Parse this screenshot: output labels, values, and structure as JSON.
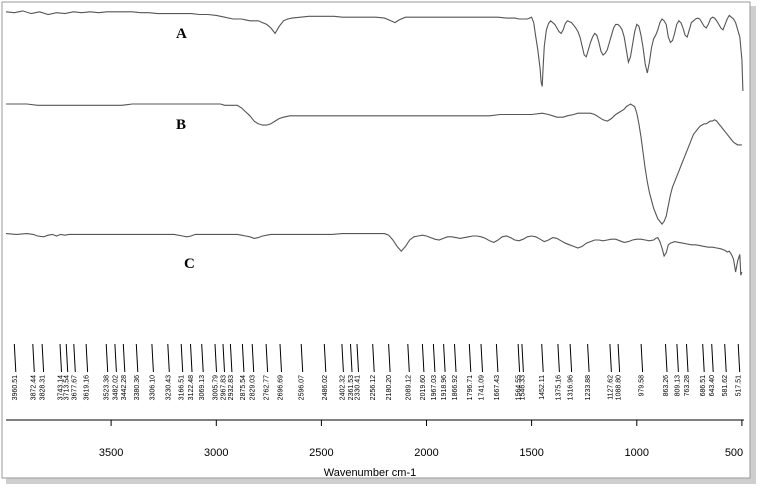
{
  "chart_data": {
    "type": "line",
    "xlabel": "Wavenumber cm-1",
    "xlim": [
      4000,
      490
    ],
    "x_ticks": [
      3500,
      3000,
      2500,
      2000,
      1500,
      1000,
      500
    ],
    "series": [
      {
        "name": "A",
        "x": [
          4000,
          3960,
          3920,
          3880,
          3840,
          3800,
          3760,
          3720,
          3680,
          3640,
          3600,
          3560,
          3520,
          3480,
          3440,
          3400,
          3360,
          3320,
          3280,
          3240,
          3200,
          3160,
          3120,
          3080,
          3040,
          3000,
          2960,
          2920,
          2880,
          2860,
          2840,
          2800,
          2780,
          2760,
          2740,
          2720,
          2700,
          2680,
          2660,
          2640,
          2600,
          2560,
          2520,
          2480,
          2440,
          2400,
          2360,
          2320,
          2280,
          2240,
          2200,
          2170,
          2150,
          2130,
          2100,
          2060,
          2020,
          1980,
          1940,
          1900,
          1860,
          1820,
          1780,
          1740,
          1700,
          1660,
          1620,
          1580,
          1560,
          1540,
          1520,
          1500,
          1490,
          1480,
          1470,
          1460,
          1455,
          1450,
          1445,
          1440,
          1430,
          1420,
          1410,
          1400,
          1390,
          1380,
          1370,
          1360,
          1350,
          1340,
          1330,
          1320,
          1310,
          1300,
          1290,
          1280,
          1270,
          1260,
          1250,
          1240,
          1230,
          1220,
          1210,
          1200,
          1190,
          1180,
          1170,
          1160,
          1150,
          1140,
          1130,
          1120,
          1110,
          1100,
          1090,
          1080,
          1070,
          1060,
          1050,
          1040,
          1030,
          1020,
          1010,
          1000,
          990,
          980,
          970,
          960,
          950,
          940,
          930,
          920,
          910,
          900,
          890,
          880,
          870,
          860,
          850,
          840,
          830,
          820,
          810,
          800,
          790,
          780,
          770,
          760,
          750,
          740,
          730,
          720,
          710,
          700,
          690,
          680,
          670,
          660,
          650,
          640,
          630,
          620,
          610,
          600,
          590,
          580,
          570,
          560,
          550,
          540,
          530,
          520,
          510,
          500,
          495
        ],
        "y": [
          98,
          97,
          99,
          96,
          98,
          95,
          97,
          96,
          98,
          97,
          98,
          97,
          98,
          98,
          98,
          98,
          97,
          97,
          96,
          96,
          96,
          96,
          96,
          95,
          95,
          94,
          92,
          90,
          90,
          89,
          88,
          88,
          86,
          84,
          80,
          74,
          82,
          88,
          90,
          91,
          92,
          93,
          93,
          93,
          93,
          92,
          92,
          92,
          92,
          92,
          91,
          88,
          86,
          89,
          92,
          92,
          92,
          92,
          92,
          92,
          92,
          92,
          92,
          92,
          92,
          92,
          91,
          91,
          90,
          90,
          90,
          92,
          86,
          70,
          55,
          35,
          20,
          15,
          38,
          60,
          78,
          85,
          88,
          86,
          84,
          80,
          76,
          74,
          78,
          85,
          88,
          87,
          86,
          83,
          80,
          76,
          70,
          60,
          50,
          48,
          56,
          64,
          70,
          74,
          72,
          64,
          54,
          50,
          52,
          56,
          64,
          72,
          80,
          84,
          84,
          82,
          78,
          70,
          56,
          42,
          48,
          62,
          76,
          84,
          82,
          72,
          58,
          40,
          30,
          42,
          58,
          68,
          72,
          78,
          86,
          90,
          88,
          84,
          70,
          64,
          66,
          74,
          84,
          88,
          86,
          80,
          72,
          70,
          78,
          86,
          88,
          90,
          91,
          90,
          86,
          82,
          80,
          84,
          90,
          92,
          91,
          88,
          84,
          80,
          78,
          84,
          90,
          94,
          92,
          90,
          86,
          78,
          70,
          45,
          10
        ]
      },
      {
        "name": "B",
        "x": [
          4000,
          3950,
          3900,
          3850,
          3800,
          3750,
          3700,
          3650,
          3600,
          3550,
          3500,
          3450,
          3400,
          3350,
          3300,
          3250,
          3200,
          3150,
          3100,
          3050,
          3000,
          2980,
          2960,
          2940,
          2920,
          2900,
          2880,
          2860,
          2840,
          2820,
          2800,
          2780,
          2760,
          2740,
          2720,
          2700,
          2680,
          2650,
          2600,
          2550,
          2500,
          2450,
          2400,
          2350,
          2300,
          2250,
          2200,
          2150,
          2100,
          2050,
          2000,
          1950,
          1900,
          1850,
          1800,
          1750,
          1700,
          1650,
          1600,
          1550,
          1500,
          1450,
          1420,
          1400,
          1380,
          1350,
          1330,
          1300,
          1280,
          1260,
          1240,
          1220,
          1200,
          1180,
          1160,
          1140,
          1120,
          1100,
          1080,
          1060,
          1050,
          1040,
          1030,
          1020,
          1010,
          1000,
          990,
          980,
          970,
          960,
          950,
          940,
          930,
          920,
          910,
          900,
          890,
          880,
          870,
          860,
          850,
          840,
          830,
          820,
          810,
          800,
          790,
          780,
          770,
          760,
          750,
          740,
          730,
          720,
          710,
          700,
          690,
          680,
          670,
          660,
          650,
          640,
          630,
          620,
          610,
          600,
          590,
          580,
          570,
          560,
          550,
          540,
          530,
          520,
          510,
          500
        ],
        "y": [
          97,
          97,
          97,
          96,
          96,
          96,
          96,
          96,
          96,
          96,
          96,
          96,
          97,
          97,
          97,
          97,
          97,
          97,
          97,
          97,
          97,
          97,
          96,
          96,
          96,
          96,
          94,
          91,
          88,
          84,
          82,
          81,
          81,
          82,
          84,
          86,
          87,
          88,
          88,
          88,
          88,
          88,
          88,
          88,
          88,
          88,
          88,
          88,
          88,
          88,
          88,
          88,
          88,
          88,
          88,
          88,
          88,
          89,
          89,
          89,
          89,
          90,
          89,
          88,
          87,
          87,
          88,
          89,
          90,
          90,
          90,
          90,
          89,
          87,
          85,
          84,
          86,
          89,
          91,
          93,
          95,
          96,
          97,
          96,
          95,
          90,
          82,
          72,
          60,
          48,
          38,
          30,
          24,
          18,
          14,
          10,
          8,
          6,
          8,
          12,
          20,
          28,
          34,
          38,
          42,
          46,
          50,
          54,
          58,
          62,
          66,
          70,
          74,
          76,
          78,
          80,
          81,
          82,
          82,
          83,
          84,
          84,
          85,
          84,
          82,
          80,
          78,
          76,
          74,
          72,
          70,
          68,
          67,
          66,
          66,
          66
        ]
      },
      {
        "name": "C",
        "x": [
          4000,
          3950,
          3900,
          3870,
          3850,
          3820,
          3800,
          3780,
          3760,
          3740,
          3720,
          3700,
          3650,
          3600,
          3550,
          3500,
          3450,
          3400,
          3350,
          3300,
          3250,
          3200,
          3160,
          3140,
          3120,
          3100,
          3050,
          3000,
          2950,
          2900,
          2880,
          2860,
          2840,
          2820,
          2800,
          2780,
          2760,
          2740,
          2720,
          2700,
          2650,
          2600,
          2550,
          2500,
          2450,
          2400,
          2350,
          2300,
          2250,
          2200,
          2180,
          2160,
          2140,
          2120,
          2100,
          2080,
          2060,
          2040,
          2020,
          2000,
          1980,
          1960,
          1940,
          1920,
          1900,
          1880,
          1860,
          1840,
          1820,
          1800,
          1780,
          1760,
          1740,
          1720,
          1700,
          1680,
          1660,
          1640,
          1620,
          1600,
          1580,
          1560,
          1540,
          1520,
          1500,
          1480,
          1460,
          1440,
          1420,
          1400,
          1380,
          1360,
          1340,
          1320,
          1300,
          1280,
          1260,
          1240,
          1220,
          1200,
          1180,
          1160,
          1140,
          1120,
          1100,
          1080,
          1060,
          1040,
          1020,
          1000,
          980,
          960,
          940,
          920,
          910,
          900,
          890,
          880,
          870,
          860,
          850,
          840,
          820,
          800,
          780,
          760,
          740,
          720,
          700,
          680,
          660,
          640,
          620,
          600,
          590,
          580,
          570,
          560,
          550,
          540,
          530,
          520,
          510,
          505,
          500
        ],
        "y": [
          98,
          97,
          98,
          97,
          95,
          94,
          96,
          97,
          95,
          97,
          96,
          97,
          97,
          97,
          97,
          97,
          97,
          97,
          97,
          97,
          97,
          97,
          95,
          94,
          95,
          97,
          97,
          97,
          97,
          97,
          96,
          95,
          94,
          92,
          93,
          95,
          96,
          97,
          97,
          97,
          97,
          97,
          97,
          97,
          97,
          98,
          98,
          98,
          98,
          98,
          96,
          90,
          82,
          76,
          82,
          90,
          94,
          95,
          96,
          95,
          93,
          91,
          90,
          92,
          94,
          94,
          93,
          92,
          93,
          94,
          95,
          95,
          94,
          92,
          89,
          87,
          90,
          94,
          95,
          93,
          90,
          89,
          91,
          94,
          95,
          94,
          91,
          88,
          90,
          93,
          92,
          89,
          86,
          84,
          82,
          80,
          82,
          86,
          88,
          90,
          90,
          89,
          90,
          91,
          91,
          89,
          87,
          88,
          90,
          91,
          91,
          90,
          89,
          90,
          92,
          93,
          88,
          80,
          70,
          74,
          84,
          86,
          88,
          87,
          86,
          85,
          84,
          84,
          83,
          82,
          81,
          81,
          80,
          79,
          78,
          77,
          75,
          76,
          72,
          66,
          50,
          64,
          72,
          46,
          50
        ]
      }
    ],
    "series_labels": [
      "A",
      "B",
      "C"
    ],
    "peak_labels": [
      "3960.51",
      "3872.44",
      "3828.31",
      "3743.14",
      "3713.54",
      "3677.67",
      "3619.16",
      "3523.38",
      "3482.02",
      "3442.28",
      "3380.36",
      "3306.10",
      "3230.43",
      "3166.51",
      "3122.48",
      "3069.13",
      "3005.79",
      "2967.83",
      "2932.83",
      "2875.54",
      "2829.03",
      "2762.77",
      "2696.69",
      "2596.07",
      "2486.02",
      "2402.32",
      "2361.53",
      "2330.41",
      "2256.12",
      "2180.20",
      "2089.12",
      "2019.60",
      "1967.03",
      "1918.96",
      "1866.92",
      "1796.71",
      "1741.09",
      "1667.43",
      "1564.55",
      "1546.33",
      "1452.11",
      "1375.16",
      "1316.96",
      "1233.88",
      "1127.62",
      "1088.80",
      "979.58",
      "863.26",
      "809.13",
      "763.28",
      "686.51",
      "643.40",
      "581.62",
      "517.51"
    ]
  }
}
